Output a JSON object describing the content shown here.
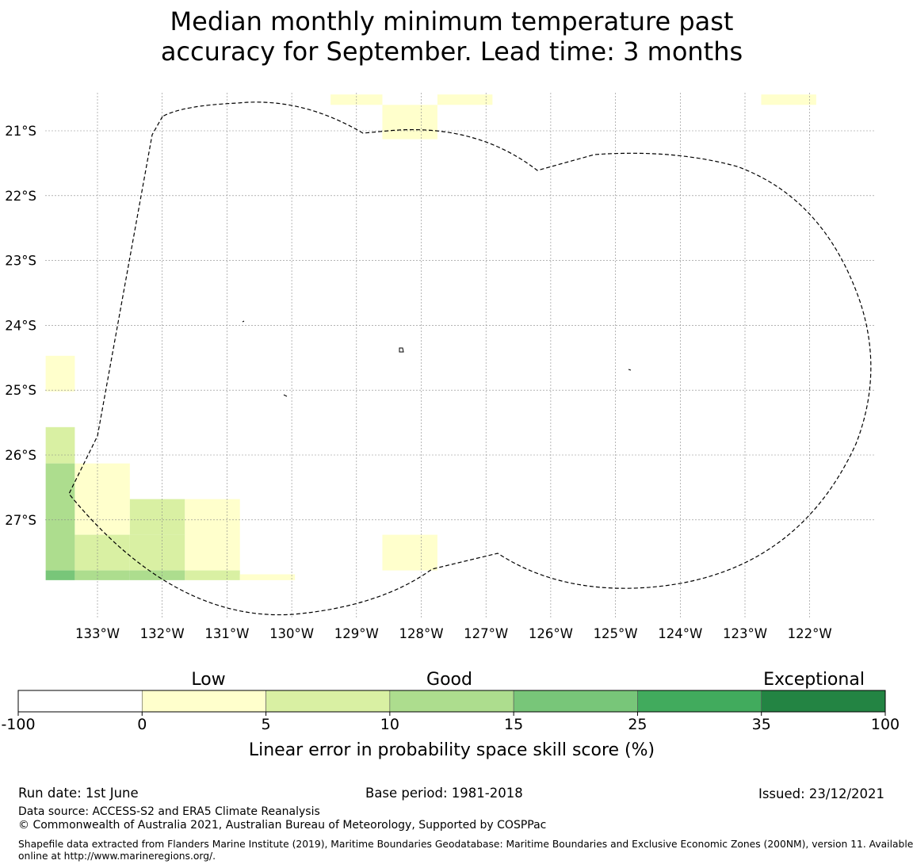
{
  "title": {
    "line1": "Median monthly minimum temperature past",
    "line2": "accuracy for September. Lead time: 3 months"
  },
  "map": {
    "lat_labels": [
      "21°S",
      "22°S",
      "23°S",
      "24°S",
      "25°S",
      "26°S",
      "27°S"
    ],
    "lat_values": [
      -21,
      -22,
      -23,
      -24,
      -25,
      -26,
      -27
    ],
    "lon_labels": [
      "133°W",
      "132°W",
      "131°W",
      "130°W",
      "129°W",
      "128°W",
      "127°W",
      "126°W",
      "125°W",
      "124°W",
      "123°W",
      "122°W"
    ],
    "lon_values": [
      -133,
      -132,
      -131,
      -130,
      -129,
      -128,
      -127,
      -126,
      -125,
      -124,
      -123,
      -122
    ],
    "cell_colors": {
      "0-5": "#ffffcc",
      "5-10": "#d9f0a3",
      "10-15": "#addd8e",
      "15-25": "#78c679",
      "25-35": "#41ab5d",
      "35-100": "#238443"
    },
    "cells": [
      {
        "lon": [
          -129.4,
          -128.6
        ],
        "lat": [
          -20.44,
          -20.6
        ],
        "bin": "0-5"
      },
      {
        "lon": [
          -128.6,
          -127.75
        ],
        "lat": [
          -20.6,
          -21.13
        ],
        "bin": "0-5"
      },
      {
        "lon": [
          -127.75,
          -126.9
        ],
        "lat": [
          -20.44,
          -20.6
        ],
        "bin": "0-5"
      },
      {
        "lon": [
          -122.75,
          -121.9
        ],
        "lat": [
          -20.44,
          -20.6
        ],
        "bin": "0-5"
      },
      {
        "lon": [
          -133.8,
          -133.35
        ],
        "lat": [
          -24.47,
          -25.02
        ],
        "bin": "0-5"
      },
      {
        "lon": [
          -133.8,
          -133.35
        ],
        "lat": [
          -25.57,
          -26.13
        ],
        "bin": "5-10"
      },
      {
        "lon": [
          -133.8,
          -133.35
        ],
        "lat": [
          -26.13,
          -27.78
        ],
        "bin": "10-15"
      },
      {
        "lon": [
          -133.8,
          -133.35
        ],
        "lat": [
          -27.78,
          -27.93
        ],
        "bin": "15-25"
      },
      {
        "lon": [
          -133.35,
          -132.5
        ],
        "lat": [
          -26.13,
          -27.23
        ],
        "bin": "0-5"
      },
      {
        "lon": [
          -133.35,
          -132.5
        ],
        "lat": [
          -27.23,
          -27.78
        ],
        "bin": "5-10"
      },
      {
        "lon": [
          -133.35,
          -132.5
        ],
        "lat": [
          -27.78,
          -27.93
        ],
        "bin": "10-15"
      },
      {
        "lon": [
          -132.5,
          -131.65
        ],
        "lat": [
          -26.68,
          -27.23
        ],
        "bin": "5-10"
      },
      {
        "lon": [
          -132.5,
          -131.65
        ],
        "lat": [
          -27.23,
          -27.78
        ],
        "bin": "5-10"
      },
      {
        "lon": [
          -132.5,
          -131.65
        ],
        "lat": [
          -27.78,
          -27.93
        ],
        "bin": "10-15"
      },
      {
        "lon": [
          -131.65,
          -130.8
        ],
        "lat": [
          -26.68,
          -27.78
        ],
        "bin": "0-5"
      },
      {
        "lon": [
          -131.65,
          -130.8
        ],
        "lat": [
          -27.78,
          -27.93
        ],
        "bin": "5-10"
      },
      {
        "lon": [
          -130.8,
          -129.95
        ],
        "lat": [
          -27.84,
          -27.93
        ],
        "bin": "0-5"
      },
      {
        "lon": [
          -128.6,
          -127.75
        ],
        "lat": [
          -27.23,
          -27.78
        ],
        "bin": "0-5"
      }
    ]
  },
  "colorbar": {
    "section_labels": [
      "Low",
      "Good",
      "Exceptional"
    ],
    "ticks": [
      "-100",
      "0",
      "5",
      "10",
      "15",
      "25",
      "35",
      "100"
    ],
    "colors": [
      "#ffffff",
      "#ffffcc",
      "#d9f0a3",
      "#addd8e",
      "#78c679",
      "#41ab5d",
      "#238443"
    ],
    "label": "Linear error in probability space skill score (%)"
  },
  "footer": {
    "run_date": "Run date: 1st June",
    "base_period": "Base period: 1981-2018",
    "issued": "Issued: 23/12/2021",
    "data_source": "Data source: ACCESS-S2 and ERA5 Climate Reanalysis",
    "copyright": "© Commonwealth of Australia 2021, Australian Bureau of Meteorology, Supported by COSPPac",
    "shapefile_line1": "Shapefile data extracted from Flanders Marine Institute (2019), Maritime Boundaries Geodatabase: Maritime Boundaries and Exclusive Economic Zones (200NM), version 11. Available",
    "shapefile_line2": "online at http://www.marineregions.org/."
  }
}
